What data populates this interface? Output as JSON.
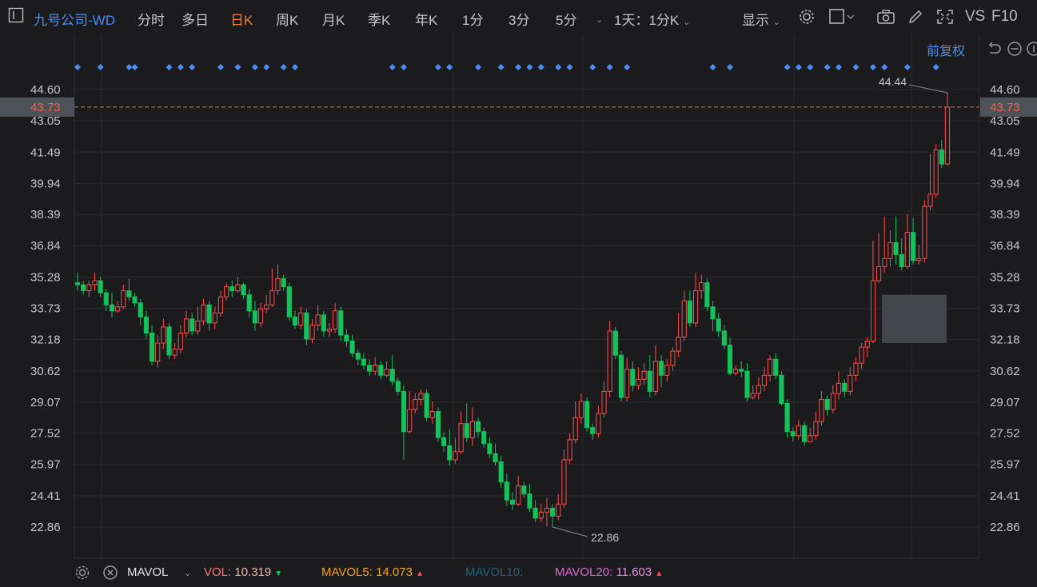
{
  "toolbar": {
    "stock_name": "九号公司-WD",
    "periods": [
      "分时",
      "多日",
      "日K",
      "周K",
      "月K",
      "季K",
      "年K",
      "1分",
      "3分",
      "5分"
    ],
    "active_period": "日K",
    "multi_label": "1天：1分K",
    "display_label": "显示",
    "vs_label": "VS",
    "f10_label": "F10",
    "adjust_label": "前复权"
  },
  "colors": {
    "up": "#ff4d4d",
    "down": "#14c15a",
    "accent": "#ff7a2b",
    "stock": "#4a8df5",
    "price_line": "#e0703a"
  },
  "chart_data": {
    "type": "candlestick",
    "y_ticks": [
      "44.60",
      "43.05",
      "41.49",
      "39.94",
      "38.39",
      "36.84",
      "35.28",
      "33.73",
      "32.18",
      "30.62",
      "29.07",
      "27.52",
      "25.97",
      "24.41",
      "22.86"
    ],
    "ylim": [
      22.86,
      44.6
    ],
    "current_price": "43.73",
    "high_label": "44.44",
    "low_label": "22.86",
    "candles": [
      [
        35.0,
        34.9,
        35.5,
        34.6
      ],
      [
        34.9,
        34.6,
        35.1,
        34.4
      ],
      [
        34.6,
        34.9,
        35.1,
        34.3
      ],
      [
        34.9,
        35.1,
        35.5,
        34.6
      ],
      [
        35.1,
        34.5,
        35.3,
        34.3
      ],
      [
        34.5,
        33.9,
        34.7,
        33.6
      ],
      [
        33.9,
        33.6,
        34.5,
        33.3
      ],
      [
        33.6,
        33.8,
        34.1,
        33.5
      ],
      [
        33.8,
        34.6,
        34.9,
        33.7
      ],
      [
        34.6,
        34.3,
        35.2,
        34.1
      ],
      [
        34.3,
        34.0,
        34.5,
        33.8
      ],
      [
        34.0,
        33.3,
        34.2,
        32.9
      ],
      [
        33.3,
        32.5,
        33.6,
        32.2
      ],
      [
        32.5,
        31.1,
        32.9,
        30.9
      ],
      [
        31.1,
        32.0,
        32.4,
        30.8
      ],
      [
        32.0,
        32.8,
        33.2,
        31.7
      ],
      [
        32.8,
        31.4,
        33.0,
        31.2
      ],
      [
        31.4,
        31.7,
        32.0,
        31.2
      ],
      [
        31.7,
        32.5,
        32.9,
        31.5
      ],
      [
        32.5,
        33.2,
        33.6,
        32.3
      ],
      [
        33.2,
        32.6,
        33.5,
        32.4
      ],
      [
        32.6,
        33.1,
        33.8,
        32.4
      ],
      [
        33.1,
        33.9,
        34.2,
        32.9
      ],
      [
        33.9,
        33.0,
        34.1,
        32.6
      ],
      [
        33.0,
        33.5,
        33.8,
        32.7
      ],
      [
        33.5,
        34.3,
        34.6,
        33.3
      ],
      [
        34.3,
        34.8,
        35.0,
        34.1
      ],
      [
        34.8,
        34.6,
        35.1,
        34.3
      ],
      [
        34.6,
        34.9,
        35.3,
        34.5
      ],
      [
        34.9,
        34.4,
        35.0,
        34.2
      ],
      [
        34.4,
        33.6,
        34.7,
        33.3
      ],
      [
        33.6,
        33.0,
        34.1,
        32.6
      ],
      [
        33.0,
        33.7,
        34.0,
        32.8
      ],
      [
        33.7,
        33.9,
        34.4,
        33.5
      ],
      [
        33.9,
        34.6,
        35.7,
        33.8
      ],
      [
        34.6,
        35.2,
        35.9,
        34.4
      ],
      [
        35.2,
        34.8,
        35.4,
        34.6
      ],
      [
        34.8,
        33.3,
        35.0,
        33.1
      ],
      [
        33.3,
        32.9,
        33.6,
        32.7
      ],
      [
        32.9,
        33.5,
        33.8,
        32.7
      ],
      [
        33.5,
        32.2,
        33.7,
        31.9
      ],
      [
        32.2,
        32.9,
        33.2,
        32.0
      ],
      [
        32.9,
        33.4,
        33.9,
        32.6
      ],
      [
        33.4,
        32.6,
        33.6,
        32.3
      ],
      [
        32.6,
        32.7,
        33.0,
        32.3
      ],
      [
        32.7,
        33.6,
        34.0,
        32.5
      ],
      [
        33.6,
        32.4,
        33.8,
        32.1
      ],
      [
        32.4,
        32.1,
        32.7,
        31.8
      ],
      [
        32.1,
        31.5,
        32.4,
        31.3
      ],
      [
        31.5,
        31.2,
        31.7,
        30.9
      ],
      [
        31.2,
        30.9,
        31.5,
        30.7
      ],
      [
        30.9,
        30.6,
        31.2,
        30.4
      ],
      [
        30.6,
        30.9,
        31.3,
        30.4
      ],
      [
        30.9,
        30.4,
        31.1,
        30.2
      ],
      [
        30.4,
        30.7,
        31.1,
        30.3
      ],
      [
        30.7,
        30.1,
        31.4,
        29.9
      ],
      [
        30.1,
        29.6,
        30.3,
        29.4
      ],
      [
        29.6,
        27.6,
        29.9,
        26.2
      ],
      [
        27.6,
        28.7,
        29.6,
        27.5
      ],
      [
        28.7,
        29.2,
        29.5,
        28.5
      ],
      [
        29.2,
        29.5,
        29.7,
        28.9
      ],
      [
        29.5,
        28.3,
        29.7,
        28.1
      ],
      [
        28.3,
        28.6,
        29.1,
        28.0
      ],
      [
        28.6,
        27.3,
        28.8,
        27.1
      ],
      [
        27.3,
        26.9,
        27.6,
        26.6
      ],
      [
        26.9,
        26.2,
        27.7,
        25.9
      ],
      [
        26.2,
        26.6,
        27.3,
        26.0
      ],
      [
        26.6,
        28.0,
        28.6,
        26.5
      ],
      [
        28.0,
        27.3,
        29.0,
        27.1
      ],
      [
        27.3,
        28.1,
        28.8,
        26.9
      ],
      [
        28.1,
        27.6,
        28.3,
        27.3
      ],
      [
        27.6,
        27.0,
        27.8,
        26.8
      ],
      [
        27.0,
        26.5,
        27.3,
        26.3
      ],
      [
        26.5,
        26.1,
        27.0,
        25.9
      ],
      [
        26.1,
        25.1,
        26.4,
        24.8
      ],
      [
        25.1,
        24.2,
        25.5,
        23.9
      ],
      [
        24.2,
        24.0,
        24.6,
        23.7
      ],
      [
        24.0,
        24.9,
        25.4,
        23.9
      ],
      [
        24.9,
        24.5,
        25.1,
        24.3
      ],
      [
        24.5,
        23.8,
        25.0,
        23.6
      ],
      [
        23.8,
        23.3,
        24.2,
        23.1
      ],
      [
        23.3,
        23.6,
        24.0,
        23.1
      ],
      [
        23.6,
        23.8,
        24.3,
        22.9
      ],
      [
        23.8,
        23.4,
        24.0,
        22.86
      ],
      [
        23.4,
        24.0,
        24.5,
        23.2
      ],
      [
        24.0,
        26.2,
        26.7,
        23.8
      ],
      [
        26.2,
        27.2,
        27.5,
        26.0
      ],
      [
        27.2,
        28.3,
        29.1,
        27.0
      ],
      [
        28.3,
        29.1,
        29.5,
        28.0
      ],
      [
        29.1,
        27.8,
        29.3,
        27.6
      ],
      [
        27.8,
        27.5,
        28.0,
        27.2
      ],
      [
        27.5,
        28.5,
        28.9,
        27.3
      ],
      [
        28.5,
        29.6,
        30.1,
        28.3
      ],
      [
        29.6,
        32.6,
        33.1,
        29.3
      ],
      [
        32.6,
        31.4,
        32.8,
        31.2
      ],
      [
        31.4,
        29.3,
        31.6,
        29.1
      ],
      [
        29.3,
        30.7,
        31.3,
        29.1
      ],
      [
        30.7,
        29.9,
        31.1,
        29.6
      ],
      [
        29.9,
        30.2,
        30.8,
        29.7
      ],
      [
        30.2,
        30.6,
        31.0,
        29.9
      ],
      [
        30.6,
        29.6,
        31.4,
        29.3
      ],
      [
        29.6,
        31.1,
        31.9,
        29.4
      ],
      [
        31.1,
        30.4,
        31.4,
        29.8
      ],
      [
        30.4,
        30.9,
        31.2,
        30.1
      ],
      [
        30.9,
        31.6,
        31.8,
        30.6
      ],
      [
        31.6,
        32.3,
        33.5,
        31.3
      ],
      [
        32.3,
        34.1,
        34.6,
        32.1
      ],
      [
        34.1,
        33.0,
        34.6,
        32.8
      ],
      [
        33.0,
        34.6,
        35.5,
        32.8
      ],
      [
        34.6,
        35.0,
        35.4,
        34.2
      ],
      [
        35.0,
        33.8,
        35.2,
        33.6
      ],
      [
        33.8,
        33.2,
        34.1,
        32.6
      ],
      [
        33.2,
        32.6,
        33.5,
        32.3
      ],
      [
        32.6,
        31.9,
        32.9,
        31.7
      ],
      [
        31.9,
        30.5,
        32.3,
        30.4
      ],
      [
        30.5,
        30.7,
        30.9,
        30.4
      ],
      [
        30.7,
        30.6,
        31.1,
        30.3
      ],
      [
        30.6,
        29.3,
        31.0,
        29.1
      ],
      [
        29.3,
        29.5,
        29.9,
        29.2
      ],
      [
        29.5,
        29.9,
        30.3,
        29.2
      ],
      [
        29.9,
        30.4,
        30.8,
        29.6
      ],
      [
        30.4,
        31.2,
        31.4,
        30.1
      ],
      [
        31.2,
        30.4,
        31.5,
        30.2
      ],
      [
        30.4,
        29.0,
        30.6,
        28.9
      ],
      [
        29.0,
        27.6,
        29.2,
        27.3
      ],
      [
        27.6,
        27.4,
        27.8,
        27.1
      ],
      [
        27.4,
        27.9,
        28.2,
        27.2
      ],
      [
        27.9,
        27.1,
        28.1,
        26.9
      ],
      [
        27.1,
        27.4,
        27.8,
        27.1
      ],
      [
        27.4,
        28.1,
        28.6,
        27.2
      ],
      [
        28.1,
        29.2,
        29.6,
        27.9
      ],
      [
        29.2,
        28.7,
        29.4,
        28.4
      ],
      [
        28.7,
        29.5,
        29.9,
        28.5
      ],
      [
        29.5,
        30.0,
        30.6,
        29.2
      ],
      [
        30.0,
        29.6,
        30.2,
        29.3
      ],
      [
        29.6,
        30.4,
        30.8,
        29.4
      ],
      [
        30.4,
        31.0,
        31.3,
        30.1
      ],
      [
        31.0,
        31.8,
        32.0,
        30.7
      ],
      [
        31.8,
        32.1,
        32.3,
        31.3
      ],
      [
        32.1,
        35.1,
        37.1,
        32.0
      ],
      [
        35.1,
        35.8,
        37.5,
        35.0
      ],
      [
        35.8,
        36.2,
        38.3,
        35.5
      ],
      [
        36.2,
        37.0,
        37.6,
        35.8
      ],
      [
        37.0,
        36.4,
        38.3,
        35.9
      ],
      [
        36.4,
        35.8,
        37.2,
        35.6
      ],
      [
        35.8,
        37.5,
        38.4,
        35.7
      ],
      [
        37.5,
        36.1,
        38.2,
        35.9
      ],
      [
        36.1,
        36.2,
        36.9,
        35.9
      ],
      [
        36.2,
        38.8,
        39.1,
        36.0
      ],
      [
        38.8,
        39.4,
        41.4,
        38.6
      ],
      [
        39.4,
        41.6,
        41.9,
        39.2
      ],
      [
        41.6,
        40.9,
        42.1,
        40.7
      ],
      [
        40.9,
        43.73,
        44.44,
        40.8
      ]
    ]
  },
  "status": {
    "mavol_label": "MAVOL",
    "vol_label": "VOL:",
    "vol_value": "10.319",
    "mavol5_label": "MAVOL5:",
    "mavol5_value": "14.073",
    "mavol10_label": "MAVOL10:",
    "mavol20_label": "MAVOL20:",
    "mavol20_value": "11.603"
  }
}
